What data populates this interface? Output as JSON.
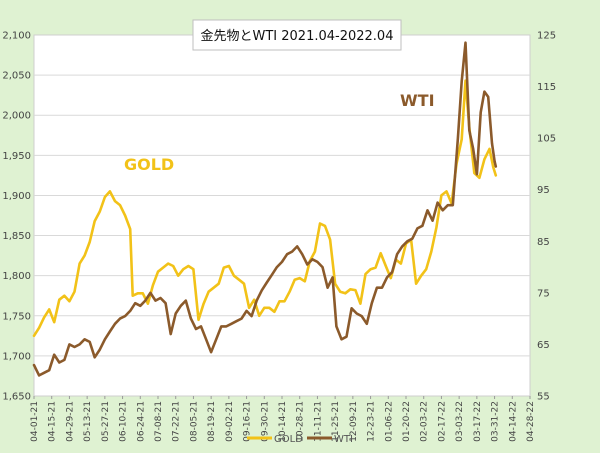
{
  "chart_data": {
    "type": "line",
    "title": "金先物とWTI 2021.04-2022.04",
    "x_tick_labels": [
      "04-01-21",
      "04-15-21",
      "04-29-21",
      "05-13-21",
      "05-27-21",
      "06-10-21",
      "06-24-21",
      "07-08-21",
      "07-22-21",
      "08-05-21",
      "08-19-21",
      "09-02-21",
      "09-16-21",
      "09-30-21",
      "10-14-21",
      "10-28-21",
      "11-11-21",
      "11-25-21",
      "12-09-21",
      "12-23-21",
      "01-06-22",
      "01-20-22",
      "02-03-22",
      "02-17-22",
      "03-03-22",
      "03-17-22",
      "03-31-22",
      "04-14-22",
      "04-28-22"
    ],
    "y_left": {
      "min": 1650,
      "max": 2100,
      "step": 50,
      "tick_labels": [
        "1,650",
        "1,700",
        "1,750",
        "1,800",
        "1,850",
        "1,900",
        "1,950",
        "2,000",
        "2,050",
        "2,100"
      ]
    },
    "y_right": {
      "min": 55,
      "max": 125,
      "step": 10,
      "tick_labels": [
        "55",
        "65",
        "75",
        "85",
        "95",
        "105",
        "115",
        "125"
      ]
    },
    "legend": {
      "position": "bottom"
    },
    "annotations": [
      {
        "text": "GOLD",
        "color": "#f2c218"
      },
      {
        "text": "WTI",
        "color": "#8b5a2b"
      }
    ],
    "series": [
      {
        "name": "GOLD",
        "axis": "left",
        "color": "#f2c218",
        "points": [
          [
            "2021-04-01",
            1725
          ],
          [
            "2021-04-05",
            1735
          ],
          [
            "2021-04-09",
            1748
          ],
          [
            "2021-04-13",
            1758
          ],
          [
            "2021-04-17",
            1742
          ],
          [
            "2021-04-21",
            1770
          ],
          [
            "2021-04-25",
            1775
          ],
          [
            "2021-04-29",
            1768
          ],
          [
            "2021-05-03",
            1780
          ],
          [
            "2021-05-07",
            1815
          ],
          [
            "2021-05-11",
            1825
          ],
          [
            "2021-05-15",
            1842
          ],
          [
            "2021-05-19",
            1868
          ],
          [
            "2021-05-23",
            1880
          ],
          [
            "2021-05-27",
            1898
          ],
          [
            "2021-05-31",
            1905
          ],
          [
            "2021-06-04",
            1893
          ],
          [
            "2021-06-08",
            1888
          ],
          [
            "2021-06-12",
            1875
          ],
          [
            "2021-06-16",
            1858
          ],
          [
            "2021-06-18",
            1775
          ],
          [
            "2021-06-22",
            1778
          ],
          [
            "2021-06-26",
            1778
          ],
          [
            "2021-06-30",
            1765
          ],
          [
            "2021-07-04",
            1788
          ],
          [
            "2021-07-08",
            1805
          ],
          [
            "2021-07-12",
            1810
          ],
          [
            "2021-07-16",
            1815
          ],
          [
            "2021-07-20",
            1812
          ],
          [
            "2021-07-24",
            1800
          ],
          [
            "2021-07-28",
            1808
          ],
          [
            "2021-08-01",
            1812
          ],
          [
            "2021-08-05",
            1808
          ],
          [
            "2021-08-09",
            1745
          ],
          [
            "2021-08-13",
            1765
          ],
          [
            "2021-08-17",
            1780
          ],
          [
            "2021-08-21",
            1785
          ],
          [
            "2021-08-25",
            1790
          ],
          [
            "2021-08-29",
            1810
          ],
          [
            "2021-09-02",
            1812
          ],
          [
            "2021-09-06",
            1800
          ],
          [
            "2021-09-10",
            1795
          ],
          [
            "2021-09-14",
            1790
          ],
          [
            "2021-09-18",
            1760
          ],
          [
            "2021-09-22",
            1770
          ],
          [
            "2021-09-26",
            1750
          ],
          [
            "2021-09-30",
            1760
          ],
          [
            "2021-10-04",
            1760
          ],
          [
            "2021-10-08",
            1755
          ],
          [
            "2021-10-12",
            1768
          ],
          [
            "2021-10-16",
            1768
          ],
          [
            "2021-10-20",
            1780
          ],
          [
            "2021-10-24",
            1795
          ],
          [
            "2021-10-28",
            1797
          ],
          [
            "2021-11-01",
            1793
          ],
          [
            "2021-11-05",
            1818
          ],
          [
            "2021-11-09",
            1830
          ],
          [
            "2021-11-13",
            1865
          ],
          [
            "2021-11-17",
            1862
          ],
          [
            "2021-11-21",
            1845
          ],
          [
            "2021-11-25",
            1790
          ],
          [
            "2021-11-29",
            1780
          ],
          [
            "2021-12-03",
            1778
          ],
          [
            "2021-12-07",
            1783
          ],
          [
            "2021-12-11",
            1782
          ],
          [
            "2021-12-15",
            1765
          ],
          [
            "2021-12-19",
            1802
          ],
          [
            "2021-12-23",
            1808
          ],
          [
            "2021-12-27",
            1810
          ],
          [
            "2021-12-31",
            1828
          ],
          [
            "2022-01-04",
            1812
          ],
          [
            "2022-01-08",
            1797
          ],
          [
            "2022-01-12",
            1820
          ],
          [
            "2022-01-16",
            1815
          ],
          [
            "2022-01-20",
            1840
          ],
          [
            "2022-01-24",
            1845
          ],
          [
            "2022-01-28",
            1790
          ],
          [
            "2022-02-01",
            1800
          ],
          [
            "2022-02-05",
            1808
          ],
          [
            "2022-02-09",
            1830
          ],
          [
            "2022-02-13",
            1860
          ],
          [
            "2022-02-17",
            1900
          ],
          [
            "2022-02-21",
            1905
          ],
          [
            "2022-02-25",
            1890
          ],
          [
            "2022-03-01",
            1940
          ],
          [
            "2022-03-05",
            1970
          ],
          [
            "2022-03-08",
            2043
          ],
          [
            "2022-03-11",
            1985
          ],
          [
            "2022-03-15",
            1928
          ],
          [
            "2022-03-19",
            1922
          ],
          [
            "2022-03-23",
            1945
          ],
          [
            "2022-03-27",
            1958
          ],
          [
            "2022-03-30",
            1935
          ],
          [
            "2022-04-01",
            1925
          ]
        ]
      },
      {
        "name": "WTI",
        "axis": "right",
        "color": "#8b5a2b",
        "points": [
          [
            "2021-04-01",
            61
          ],
          [
            "2021-04-05",
            59
          ],
          [
            "2021-04-09",
            59.5
          ],
          [
            "2021-04-13",
            60
          ],
          [
            "2021-04-17",
            63
          ],
          [
            "2021-04-21",
            61.5
          ],
          [
            "2021-04-25",
            62
          ],
          [
            "2021-04-29",
            65
          ],
          [
            "2021-05-03",
            64.5
          ],
          [
            "2021-05-07",
            65
          ],
          [
            "2021-05-11",
            66
          ],
          [
            "2021-05-15",
            65.5
          ],
          [
            "2021-05-19",
            62.5
          ],
          [
            "2021-05-23",
            64
          ],
          [
            "2021-05-27",
            66
          ],
          [
            "2021-05-31",
            67.5
          ],
          [
            "2021-06-04",
            69
          ],
          [
            "2021-06-08",
            70
          ],
          [
            "2021-06-12",
            70.5
          ],
          [
            "2021-06-16",
            71.5
          ],
          [
            "2021-06-20",
            73
          ],
          [
            "2021-06-24",
            72.5
          ],
          [
            "2021-06-28",
            73.5
          ],
          [
            "2021-07-02",
            75
          ],
          [
            "2021-07-06",
            73.5
          ],
          [
            "2021-07-10",
            74
          ],
          [
            "2021-07-14",
            73
          ],
          [
            "2021-07-18",
            67
          ],
          [
            "2021-07-22",
            71
          ],
          [
            "2021-07-26",
            72.5
          ],
          [
            "2021-07-30",
            73.5
          ],
          [
            "2021-08-03",
            70
          ],
          [
            "2021-08-07",
            68
          ],
          [
            "2021-08-11",
            68.5
          ],
          [
            "2021-08-15",
            66
          ],
          [
            "2021-08-19",
            63.5
          ],
          [
            "2021-08-23",
            66
          ],
          [
            "2021-08-27",
            68.5
          ],
          [
            "2021-08-31",
            68.5
          ],
          [
            "2021-09-04",
            69
          ],
          [
            "2021-09-08",
            69.5
          ],
          [
            "2021-09-12",
            70
          ],
          [
            "2021-09-16",
            71.5
          ],
          [
            "2021-09-20",
            70.5
          ],
          [
            "2021-09-24",
            73.5
          ],
          [
            "2021-09-28",
            75.5
          ],
          [
            "2021-10-02",
            77
          ],
          [
            "2021-10-06",
            78.5
          ],
          [
            "2021-10-10",
            80
          ],
          [
            "2021-10-14",
            81
          ],
          [
            "2021-10-18",
            82.5
          ],
          [
            "2021-10-22",
            83
          ],
          [
            "2021-10-26",
            84
          ],
          [
            "2021-10-30",
            82.5
          ],
          [
            "2021-11-03",
            80.5
          ],
          [
            "2021-11-07",
            81.5
          ],
          [
            "2021-11-11",
            81
          ],
          [
            "2021-11-15",
            80
          ],
          [
            "2021-11-19",
            76
          ],
          [
            "2021-11-23",
            78
          ],
          [
            "2021-11-26",
            68.5
          ],
          [
            "2021-11-30",
            66
          ],
          [
            "2021-12-04",
            66.5
          ],
          [
            "2021-12-08",
            72
          ],
          [
            "2021-12-12",
            71
          ],
          [
            "2021-12-16",
            70.5
          ],
          [
            "2021-12-20",
            69
          ],
          [
            "2021-12-24",
            73
          ],
          [
            "2021-12-28",
            76
          ],
          [
            "2022-01-01",
            76
          ],
          [
            "2022-01-05",
            78
          ],
          [
            "2022-01-09",
            79
          ],
          [
            "2022-01-13",
            82.5
          ],
          [
            "2022-01-17",
            84
          ],
          [
            "2022-01-21",
            85
          ],
          [
            "2022-01-25",
            85.5
          ],
          [
            "2022-01-29",
            87.5
          ],
          [
            "2022-02-02",
            88
          ],
          [
            "2022-02-06",
            91
          ],
          [
            "2022-02-10",
            89
          ],
          [
            "2022-02-14",
            92.5
          ],
          [
            "2022-02-18",
            91
          ],
          [
            "2022-02-22",
            92
          ],
          [
            "2022-02-26",
            92
          ],
          [
            "2022-03-02",
            105
          ],
          [
            "2022-03-05",
            116
          ],
          [
            "2022-03-08",
            123.5
          ],
          [
            "2022-03-11",
            106.5
          ],
          [
            "2022-03-14",
            103
          ],
          [
            "2022-03-17",
            98
          ],
          [
            "2022-03-20",
            110
          ],
          [
            "2022-03-23",
            114
          ],
          [
            "2022-03-26",
            113
          ],
          [
            "2022-03-29",
            104
          ],
          [
            "2022-03-31",
            100.5
          ],
          [
            "2022-04-01",
            99.5
          ]
        ]
      }
    ]
  }
}
